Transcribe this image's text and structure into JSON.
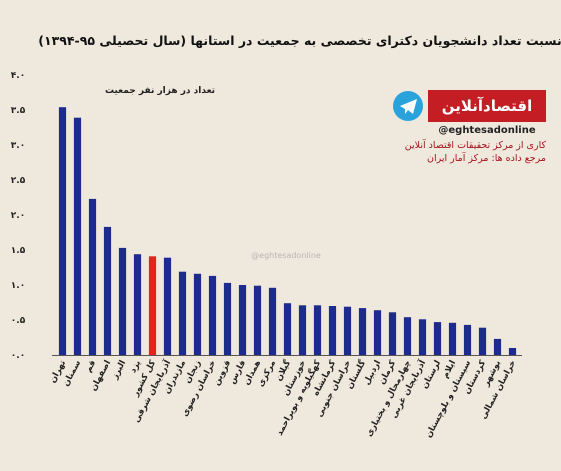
{
  "chart_data": {
    "type": "bar",
    "title": "نسبت تعداد دانشجویان دکترای تخصصی به جمعیت در استانها (سال تحصیلی ۹۵-۱۳۹۴)",
    "y_label": "تعداد در هزار نفر جمعیت",
    "categories": [
      "تهران",
      "سمنان",
      "قم",
      "اصفهان",
      "البرز",
      "یزد",
      "کل کشور",
      "آذربایجان شرقی",
      "مازندران",
      "زنجان",
      "خراسان رضوی",
      "قزوین",
      "فارس",
      "همدان",
      "مرکزی",
      "گیلان",
      "خوزستان",
      "کهگیلویه و بویراحمد",
      "کرمانشاه",
      "خراسان جنوبی",
      "گلستان",
      "اردبیل",
      "کرمان",
      "چهارمحال و بختیاری",
      "آذربایجان غربی",
      "لرستان",
      "ایلام",
      "سیستان و بلوچستان",
      "کردستان",
      "بوشهر",
      "خراسان شمالی"
    ],
    "values": [
      3.54,
      3.39,
      2.23,
      1.83,
      1.53,
      1.44,
      1.41,
      1.39,
      1.19,
      1.16,
      1.13,
      1.03,
      1.0,
      0.99,
      0.96,
      0.74,
      0.71,
      0.71,
      0.7,
      0.69,
      0.67,
      0.64,
      0.61,
      0.54,
      0.51,
      0.47,
      0.46,
      0.43,
      0.39,
      0.23,
      0.1
    ],
    "colors": [
      "#1d2a8e",
      "#1d2a8e",
      "#1d2a8e",
      "#1d2a8e",
      "#1d2a8e",
      "#1d2a8e",
      "#e4231f",
      "#1d2a8e",
      "#1d2a8e",
      "#1d2a8e",
      "#1d2a8e",
      "#1d2a8e",
      "#1d2a8e",
      "#1d2a8e",
      "#1d2a8e",
      "#1d2a8e",
      "#1d2a8e",
      "#1d2a8e",
      "#1d2a8e",
      "#1d2a8e",
      "#1d2a8e",
      "#1d2a8e",
      "#1d2a8e",
      "#1d2a8e",
      "#1d2a8e",
      "#1d2a8e",
      "#1d2a8e",
      "#1d2a8e",
      "#1d2a8e",
      "#1d2a8e",
      "#1d2a8e"
    ],
    "ylim": [
      0,
      4
    ],
    "yticks": [
      {
        "value": 0,
        "label": "۰.۰"
      },
      {
        "value": 0.5,
        "label": "۰.۵"
      },
      {
        "value": 1,
        "label": "۱.۰"
      },
      {
        "value": 1.5,
        "label": "۱.۵"
      },
      {
        "value": 2,
        "label": "۲.۰"
      },
      {
        "value": 2.5,
        "label": "۲.۵"
      },
      {
        "value": 3,
        "label": "۳.۰"
      },
      {
        "value": 3.5,
        "label": "۳.۵"
      },
      {
        "value": 4,
        "label": "۴.۰"
      }
    ],
    "grid": false
  },
  "branding": {
    "logo": "اقتصادآنلاین",
    "handle": "@eghtesadonline",
    "credit": "کاری از مرکز تحقیقات اقتصاد آنلاین",
    "source": "مرجع داده ها: مرکز آمار ایران",
    "watermark": "@eghtesadonline"
  }
}
